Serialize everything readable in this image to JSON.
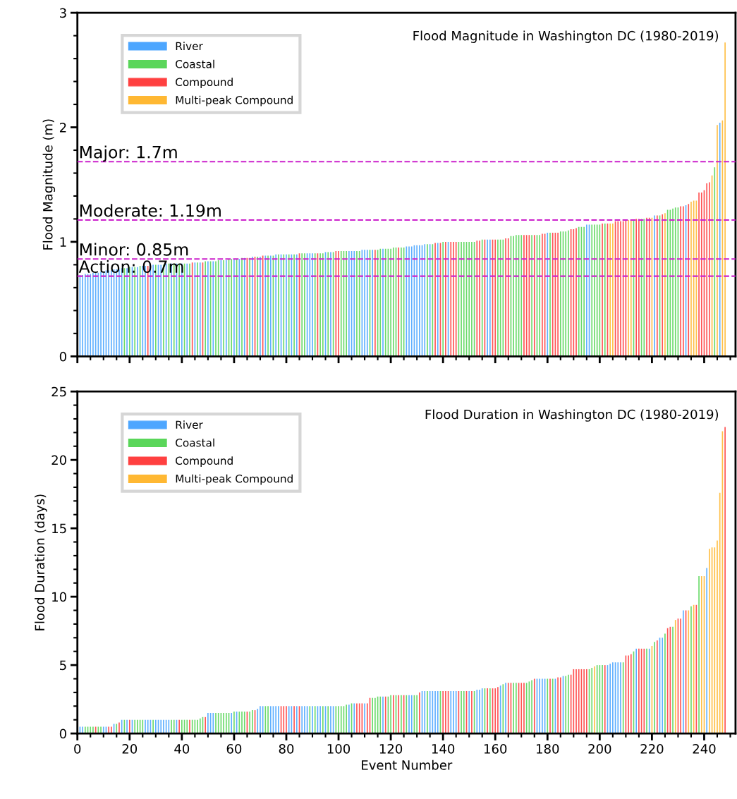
{
  "chart_data": [
    {
      "type": "bar",
      "title": "Flood Magnitude in Washington DC (1980-2019)",
      "ylabel": "Flood Magnitude (m)",
      "xlim": [
        0,
        252
      ],
      "xticks": [
        0,
        20,
        40,
        60,
        80,
        100,
        120,
        140,
        160,
        180,
        200,
        220,
        240
      ],
      "ylim": [
        0,
        3
      ],
      "yticks": [
        0,
        1,
        2,
        3
      ],
      "tick_labels": "y",
      "legend": "top left",
      "grid": false,
      "ref_lines": [
        {
          "axis": "y",
          "value": 0.7,
          "label": "Action: 0.7m",
          "color": "#cc22cc",
          "line_style": "dashed"
        },
        {
          "axis": "y",
          "value": 0.85,
          "label": "Minor: 0.85m",
          "color": "#cc22cc",
          "line_style": "dashed"
        },
        {
          "axis": "y",
          "value": 1.19,
          "label": "Moderate: 1.19m",
          "color": "#cc22cc",
          "line_style": "dashed"
        },
        {
          "axis": "y",
          "value": 1.7,
          "label": "Major: 1.7m",
          "color": "#cc22cc",
          "line_style": "dashed"
        }
      ],
      "series": [
        {
          "name": "River",
          "color": "#4da6ff",
          "x": [
            1,
            2,
            3,
            4,
            5,
            6,
            7,
            8,
            9,
            10,
            11,
            12,
            13,
            14,
            15,
            16,
            17,
            19,
            21,
            23,
            25,
            26,
            28,
            29,
            31,
            32,
            34,
            36,
            38,
            40,
            42,
            45,
            47,
            50,
            52,
            55,
            57,
            60,
            62,
            64,
            67,
            70,
            72,
            74,
            76,
            78,
            80,
            82,
            84,
            88,
            89,
            90,
            95,
            97,
            104,
            105,
            106,
            109,
            110,
            111,
            113,
            117,
            126,
            127,
            128,
            129,
            130,
            131,
            132,
            133,
            135,
            138,
            142,
            157,
            158,
            180,
            195,
            196,
            221,
            233,
            246
          ],
          "values": [
            0.71,
            0.71,
            0.72,
            0.72,
            0.72,
            0.73,
            0.73,
            0.73,
            0.74,
            0.74,
            0.75,
            0.75,
            0.75,
            0.76,
            0.76,
            0.76,
            0.77,
            0.77,
            0.78,
            0.78,
            0.79,
            0.79,
            0.8,
            0.8,
            0.8,
            0.8,
            0.81,
            0.81,
            0.81,
            0.81,
            0.81,
            0.82,
            0.82,
            0.83,
            0.83,
            0.84,
            0.84,
            0.85,
            0.85,
            0.86,
            0.87,
            0.87,
            0.88,
            0.88,
            0.89,
            0.89,
            0.89,
            0.89,
            0.89,
            0.9,
            0.9,
            0.9,
            0.91,
            0.91,
            0.92,
            0.92,
            0.92,
            0.93,
            0.93,
            0.93,
            0.93,
            0.94,
            0.96,
            0.96,
            0.96,
            0.97,
            0.97,
            0.97,
            0.97,
            0.98,
            0.98,
            0.99,
            1.0,
            1.02,
            1.02,
            1.08,
            1.15,
            1.15,
            1.23,
            1.32,
            2.04
          ]
        },
        {
          "name": "Coastal",
          "color": "#5ad65a",
          "x": [
            18,
            20,
            22,
            24,
            30,
            33,
            35,
            37,
            39,
            41,
            43,
            46,
            49,
            51,
            53,
            54,
            56,
            58,
            59,
            61,
            63,
            66,
            69,
            73,
            75,
            77,
            79,
            81,
            83,
            86,
            87,
            91,
            93,
            94,
            96,
            98,
            101,
            102,
            103,
            107,
            108,
            112,
            115,
            116,
            118,
            119,
            120,
            121,
            122,
            124,
            125,
            134,
            136,
            140,
            146,
            147,
            148,
            149,
            150,
            151,
            152,
            155,
            161,
            162,
            163,
            166,
            167,
            168,
            169,
            170,
            174,
            176,
            177,
            181,
            185,
            186,
            187,
            188,
            192,
            193,
            194,
            197,
            198,
            199,
            200,
            202,
            213,
            216,
            217,
            223,
            226,
            227,
            228,
            229,
            230,
            244
          ],
          "values": [
            0.77,
            0.78,
            0.78,
            0.79,
            0.8,
            0.8,
            0.81,
            0.81,
            0.81,
            0.81,
            0.81,
            0.82,
            0.83,
            0.83,
            0.83,
            0.84,
            0.84,
            0.85,
            0.85,
            0.85,
            0.86,
            0.86,
            0.87,
            0.88,
            0.88,
            0.89,
            0.89,
            0.89,
            0.89,
            0.9,
            0.9,
            0.9,
            0.9,
            0.9,
            0.91,
            0.91,
            0.92,
            0.92,
            0.92,
            0.92,
            0.92,
            0.93,
            0.93,
            0.94,
            0.94,
            0.94,
            0.94,
            0.95,
            0.95,
            0.95,
            0.95,
            0.98,
            0.98,
            1.0,
            1.0,
            1.0,
            1.0,
            1.0,
            1.0,
            1.0,
            1.0,
            1.02,
            1.02,
            1.02,
            1.02,
            1.05,
            1.05,
            1.06,
            1.06,
            1.06,
            1.06,
            1.06,
            1.06,
            1.08,
            1.09,
            1.09,
            1.09,
            1.1,
            1.13,
            1.13,
            1.13,
            1.15,
            1.15,
            1.15,
            1.15,
            1.16,
            1.19,
            1.2,
            1.2,
            1.23,
            1.28,
            1.28,
            1.29,
            1.3,
            1.3,
            1.65
          ]
        },
        {
          "name": "Compound",
          "color": "#ff4040",
          "x": [
            27,
            44,
            48,
            65,
            68,
            71,
            85,
            92,
            99,
            100,
            114,
            123,
            137,
            139,
            141,
            143,
            144,
            145,
            153,
            154,
            156,
            159,
            160,
            164,
            165,
            171,
            172,
            173,
            175,
            178,
            179,
            182,
            183,
            184,
            189,
            190,
            191,
            201,
            203,
            206,
            207,
            208,
            209,
            210,
            214,
            215,
            218,
            219,
            222,
            224,
            231,
            232,
            234,
            238,
            239,
            240,
            241,
            242
          ],
          "values": [
            0.79,
            0.82,
            0.82,
            0.86,
            0.87,
            0.88,
            0.9,
            0.9,
            0.92,
            0.92,
            0.93,
            0.95,
            0.99,
            0.99,
            1.0,
            1.0,
            1.0,
            1.0,
            1.01,
            1.01,
            1.02,
            1.02,
            1.02,
            1.03,
            1.03,
            1.06,
            1.06,
            1.06,
            1.06,
            1.07,
            1.07,
            1.08,
            1.08,
            1.08,
            1.11,
            1.11,
            1.12,
            1.16,
            1.16,
            1.18,
            1.18,
            1.18,
            1.18,
            1.19,
            1.2,
            1.2,
            1.21,
            1.21,
            1.23,
            1.24,
            1.31,
            1.31,
            1.33,
            1.43,
            1.43,
            1.45,
            1.51,
            1.52
          ]
        },
        {
          "name": "Multi-peak Compound",
          "color": "#ffb833",
          "x": [
            204,
            205,
            211,
            212,
            220,
            225,
            235,
            236,
            237,
            243,
            245,
            247,
            248
          ],
          "values": [
            1.16,
            1.16,
            1.19,
            1.19,
            1.21,
            1.25,
            1.35,
            1.36,
            1.36,
            1.58,
            2.02,
            2.06,
            2.74
          ]
        }
      ]
    },
    {
      "type": "bar",
      "title": "Flood Duration in Washington DC (1980-2019)",
      "xlabel": "Event Number",
      "ylabel": "Flood Duration (days)",
      "xlim": [
        0,
        252
      ],
      "xticks": [
        0,
        20,
        40,
        60,
        80,
        100,
        120,
        140,
        160,
        180,
        200,
        220,
        240
      ],
      "ylim": [
        0,
        25
      ],
      "yticks": [
        0,
        5,
        10,
        15,
        20,
        25
      ],
      "legend": "top left",
      "grid": false,
      "series": [
        {
          "name": "River",
          "color": "#4da6ff",
          "x": [
            1,
            2,
            10,
            11,
            14,
            17,
            19,
            21,
            26,
            27,
            28,
            30,
            31,
            32,
            33,
            34,
            35,
            38,
            50,
            51,
            52,
            59,
            61,
            69,
            70,
            71,
            74,
            75,
            76,
            77,
            81,
            82,
            84,
            86,
            87,
            88,
            90,
            92,
            93,
            95,
            97,
            98,
            104,
            106,
            110,
            117,
            127,
            128,
            132,
            133,
            135,
            136,
            137,
            138,
            143,
            144,
            145,
            150,
            153,
            154,
            155,
            162,
            164,
            176,
            177,
            178,
            179,
            183,
            186,
            203,
            204,
            205,
            206,
            207,
            208,
            214,
            219,
            223,
            224,
            232,
            241
          ],
          "values": [
            0.5,
            0.5,
            0.5,
            0.5,
            0.7,
            1.0,
            1.0,
            1.0,
            1.0,
            1.0,
            1.0,
            1.0,
            1.0,
            1.0,
            1.0,
            1.0,
            1.0,
            1.0,
            1.5,
            1.5,
            1.5,
            1.5,
            1.6,
            1.8,
            2.0,
            2.0,
            2.0,
            2.0,
            2.0,
            2.0,
            2.0,
            2.0,
            2.0,
            2.0,
            2.0,
            2.0,
            2.0,
            2.0,
            2.0,
            2.0,
            2.0,
            2.0,
            2.1,
            2.2,
            2.2,
            2.7,
            2.8,
            2.8,
            3.1,
            3.1,
            3.1,
            3.1,
            3.1,
            3.1,
            3.1,
            3.1,
            3.1,
            3.1,
            3.2,
            3.2,
            3.3,
            3.5,
            3.7,
            4.0,
            4.0,
            4.0,
            4.0,
            4.0,
            4.2,
            5.0,
            5.1,
            5.2,
            5.2,
            5.2,
            5.2,
            6.2,
            6.2,
            7.0,
            7.0,
            9.0,
            12.1
          ]
        },
        {
          "name": "Coastal",
          "color": "#5ad65a",
          "x": [
            3,
            4,
            5,
            6,
            8,
            9,
            15,
            18,
            22,
            23,
            24,
            25,
            29,
            36,
            37,
            40,
            41,
            42,
            44,
            45,
            46,
            47,
            48,
            53,
            54,
            55,
            56,
            57,
            58,
            60,
            62,
            63,
            64,
            66,
            67,
            72,
            73,
            89,
            91,
            94,
            96,
            99,
            100,
            101,
            102,
            103,
            105,
            113,
            114,
            115,
            116,
            119,
            120,
            122,
            124,
            126,
            129,
            130,
            134,
            139,
            147,
            148,
            152,
            156,
            158,
            163,
            167,
            168,
            172,
            173,
            174,
            180,
            182,
            187,
            188,
            196,
            197,
            199,
            200,
            201,
            209,
            213,
            218,
            221,
            225,
            228,
            235,
            238
          ],
          "values": [
            0.5,
            0.5,
            0.5,
            0.5,
            0.5,
            0.5,
            0.7,
            1.0,
            1.0,
            1.0,
            1.0,
            1.0,
            1.0,
            1.0,
            1.0,
            1.0,
            1.0,
            1.0,
            1.0,
            1.0,
            1.0,
            1.1,
            1.2,
            1.5,
            1.5,
            1.5,
            1.5,
            1.5,
            1.5,
            1.6,
            1.6,
            1.6,
            1.6,
            1.6,
            1.7,
            2.0,
            2.0,
            2.0,
            2.0,
            2.0,
            2.0,
            2.0,
            2.0,
            2.0,
            2.0,
            2.1,
            2.2,
            2.6,
            2.6,
            2.7,
            2.7,
            2.7,
            2.8,
            2.8,
            2.8,
            2.8,
            2.8,
            2.8,
            3.1,
            3.1,
            3.1,
            3.1,
            3.1,
            3.3,
            3.3,
            3.6,
            3.7,
            3.7,
            3.7,
            3.8,
            3.9,
            4.0,
            4.0,
            4.2,
            4.3,
            4.7,
            4.8,
            5.0,
            5.0,
            5.0,
            5.2,
            6.0,
            6.2,
            6.7,
            7.3,
            7.8,
            9.3,
            11.5
          ]
        },
        {
          "name": "Compound",
          "color": "#ff4040",
          "x": [
            7,
            12,
            13,
            16,
            20,
            39,
            43,
            49,
            65,
            68,
            78,
            79,
            80,
            83,
            85,
            107,
            108,
            109,
            111,
            112,
            118,
            121,
            123,
            125,
            131,
            140,
            141,
            142,
            146,
            149,
            151,
            157,
            159,
            160,
            161,
            165,
            166,
            169,
            170,
            171,
            175,
            181,
            184,
            185,
            189,
            190,
            191,
            192,
            193,
            194,
            195,
            202,
            210,
            211,
            212,
            215,
            216,
            217,
            222,
            226,
            227,
            230,
            231,
            233,
            237,
            248
          ],
          "values": [
            0.5,
            0.5,
            0.5,
            0.8,
            1.0,
            1.0,
            1.0,
            1.2,
            1.6,
            1.7,
            2.0,
            2.0,
            2.0,
            2.0,
            2.0,
            2.2,
            2.2,
            2.2,
            2.2,
            2.6,
            2.7,
            2.8,
            2.8,
            2.8,
            3.0,
            3.1,
            3.1,
            3.1,
            3.1,
            3.1,
            3.1,
            3.3,
            3.3,
            3.3,
            3.4,
            3.7,
            3.7,
            3.7,
            3.7,
            3.7,
            4.0,
            4.0,
            4.1,
            4.1,
            4.3,
            4.7,
            4.7,
            4.7,
            4.7,
            4.7,
            4.7,
            5.0,
            5.7,
            5.7,
            5.8,
            6.2,
            6.2,
            6.2,
            6.8,
            7.7,
            7.8,
            8.4,
            8.4,
            9.0,
            9.4,
            22.4
          ]
        },
        {
          "name": "Multi-peak Compound",
          "color": "#ffb833",
          "x": [
            198,
            220,
            229,
            234,
            236,
            239,
            240,
            242,
            243,
            244,
            245,
            246,
            247
          ],
          "values": [
            4.9,
            6.4,
            8.3,
            9.0,
            9.4,
            11.5,
            11.5,
            13.5,
            13.6,
            13.6,
            14.1,
            17.6,
            22.1
          ]
        }
      ]
    }
  ]
}
